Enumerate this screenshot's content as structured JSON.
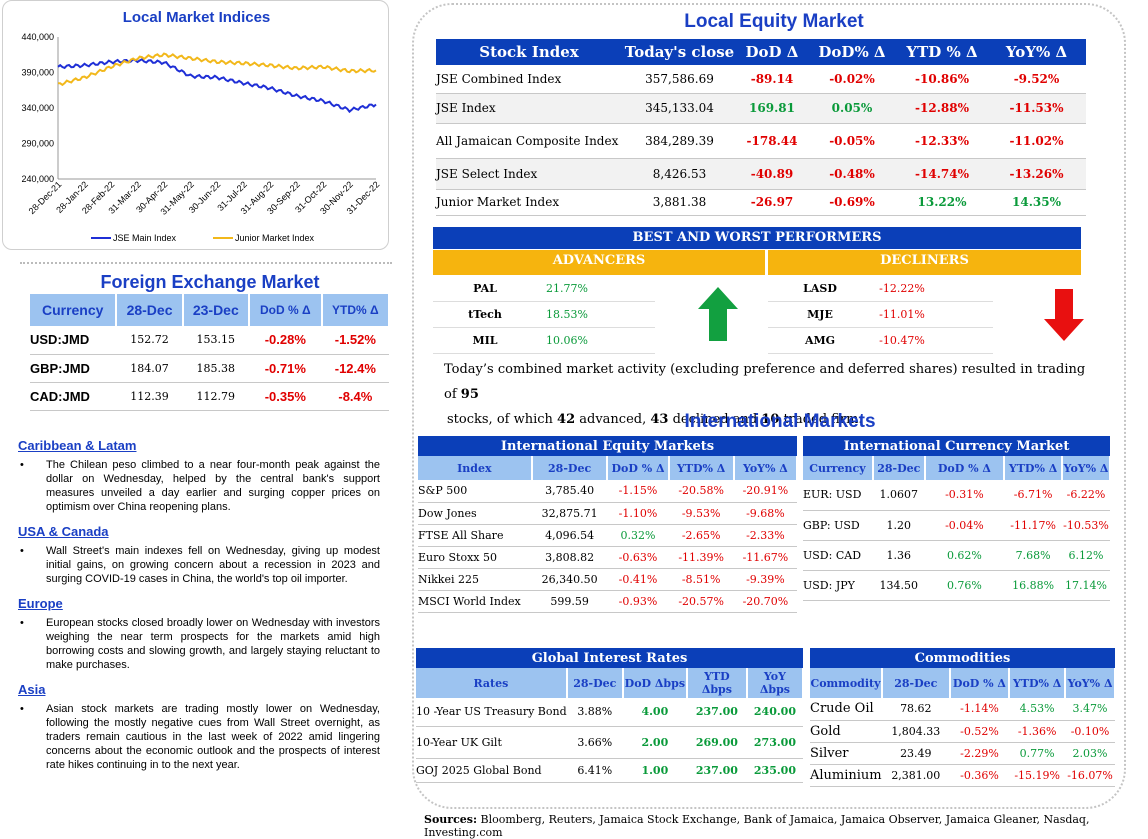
{
  "indices_chart": {
    "title": "Local Market Indices",
    "y_ticks": [
      "440,000",
      "390,000",
      "340,000",
      "290,000",
      "240,000"
    ],
    "x_ticks": [
      "28-Dec-21",
      "28-Jan-22",
      "28-Feb-22",
      "31-Mar-22",
      "30-Apr-22",
      "31-May-22",
      "30-Jun-22",
      "31-Jul-22",
      "31-Aug-22",
      "30-Sep-22",
      "31-Oct-22",
      "30-Nov-22",
      "31-Dec-22"
    ],
    "legend": [
      "JSE Main Index",
      "Junior Market Index"
    ],
    "colors": {
      "jse": "#1f2fd6",
      "junior": "#f2b81b"
    }
  },
  "chart_data": {
    "type": "line",
    "title": "Local Market Indices",
    "x": [
      "28-Dec-21",
      "28-Jan-22",
      "28-Feb-22",
      "31-Mar-22",
      "30-Apr-22",
      "31-May-22",
      "30-Jun-22",
      "31-Jul-22",
      "31-Aug-22",
      "30-Sep-22",
      "31-Oct-22",
      "30-Nov-22",
      "31-Dec-22"
    ],
    "ylim": [
      240000,
      440000
    ],
    "series": [
      {
        "name": "JSE Main Index",
        "values": [
          398000,
          400000,
          405000,
          407000,
          404000,
          385000,
          383000,
          375000,
          368000,
          357000,
          350000,
          337000,
          345000
        ]
      },
      {
        "name": "Junior Market Index",
        "values": [
          373000,
          383000,
          398000,
          410000,
          415000,
          410000,
          405000,
          403000,
          400000,
          396000,
          398000,
          392000,
          393000
        ]
      }
    ]
  },
  "fx": {
    "title": "Foreign Exchange Market",
    "headers": [
      "Currency",
      "28-Dec",
      "23-Dec",
      "DoD % Δ",
      "YTD% Δ"
    ],
    "rows": [
      [
        "USD:JMD",
        "152.72",
        "153.15",
        "-0.28%",
        "-1.52%"
      ],
      [
        "GBP:JMD",
        "184.07",
        "185.38",
        "-0.71%",
        "-12.4%"
      ],
      [
        "CAD:JMD",
        "112.39",
        "112.79",
        "-0.35%",
        "-8.4%"
      ]
    ]
  },
  "news": [
    {
      "heading": "Caribbean & Latam",
      "text": "The Chilean peso climbed to a near four-month peak against the dollar on Wednesday, helped by the central bank's support measures unveiled a day earlier and surging copper prices on optimism over China reopening plans."
    },
    {
      "heading": "USA & Canada",
      "text": "Wall Street's main indexes fell on Wednesday, giving up modest initial gains, on growing concern about a recession in 2023 and surging COVID-19 cases in China, the world's top oil importer."
    },
    {
      "heading": "Europe",
      "text": "European stocks closed broadly lower on Wednesday with investors weighing the near term prospects for the markets amid high borrowing costs and slowing growth, and largely staying reluctant to make purchases."
    },
    {
      "heading": "Asia",
      "text": "Asian stock markets are trading mostly lower on Wednesday, following the mostly negative cues from Wall Street overnight, as traders remain cautious in the last week of 2022 amid lingering concerns about the economic outlook and the prospects of interest rate hikes continuing in to the next year."
    }
  ],
  "equity": {
    "title": "Local Equity Market",
    "headers": [
      "Stock Index",
      "Today's close",
      "DoD  Δ",
      "DoD% Δ",
      "YTD % Δ",
      "YoY% Δ"
    ],
    "rows": [
      [
        "JSE Combined Index",
        "357,586.69",
        "-89.14",
        "-0.02%",
        "-10.86%",
        "-9.52%"
      ],
      [
        "JSE Index",
        "345,133.04",
        "169.81",
        "0.05%",
        "-12.88%",
        "-11.53%"
      ],
      [
        "All Jamaican Composite Index",
        "384,289.39",
        "-178.44",
        "-0.05%",
        "-12.33%",
        "-11.02%"
      ],
      [
        "JSE Select Index",
        "8,426.53",
        "-40.89",
        "-0.48%",
        "-14.74%",
        "-13.26%"
      ],
      [
        "Junior Market Index",
        "3,881.38",
        "-26.97",
        "-0.69%",
        "13.22%",
        "14.35%"
      ]
    ]
  },
  "performers": {
    "title": "BEST AND WORST PERFORMERS",
    "advancers_label": "ADVANCERS",
    "decliners_label": "DECLINERS",
    "advancers": [
      [
        "PAL",
        "21.77%"
      ],
      [
        "tTech",
        "18.53%"
      ],
      [
        "MIL",
        "10.06%"
      ]
    ],
    "decliners": [
      [
        "LASD",
        "-12.22%"
      ],
      [
        "MJE",
        "-11.01%"
      ],
      [
        "AMG",
        "-10.47%"
      ]
    ]
  },
  "activity": {
    "pre": "Today’s combined market activity (excluding preference and deferred shares) resulted in trading of ",
    "traded": "95",
    "mid1": " stocks, of which ",
    "advanced": "42",
    "mid2": " advanced, ",
    "declined": "43",
    "mid3": " declined and ",
    "firm": "10",
    "post": " traded firm."
  },
  "intl": {
    "title": "International Markets",
    "equity": {
      "title": "International Equity Markets",
      "headers": [
        "Index",
        "28-Dec",
        "DoD % Δ",
        "YTD% Δ",
        "YoY% Δ"
      ],
      "rows": [
        [
          "S&P 500",
          "3,785.40",
          "-1.15%",
          "-20.58%",
          "-20.91%"
        ],
        [
          "Dow Jones",
          "32,875.71",
          "-1.10%",
          "-9.53%",
          "-9.68%"
        ],
        [
          "FTSE All Share",
          "4,096.54",
          "0.32%",
          "-2.65%",
          "-2.33%"
        ],
        [
          "Euro Stoxx 50",
          "3,808.82",
          "-0.63%",
          "-11.39%",
          "-11.67%"
        ],
        [
          "Nikkei 225",
          "26,340.50",
          "-0.41%",
          "-8.51%",
          "-9.39%"
        ],
        [
          "MSCI World Index",
          "599.59",
          "-0.93%",
          "-20.57%",
          "-20.70%"
        ]
      ]
    },
    "currency": {
      "title": "International Currency Market",
      "headers": [
        "Currency",
        "28-Dec",
        "DoD % Δ",
        "YTD% Δ",
        "YoY% Δ"
      ],
      "rows": [
        [
          "EUR: USD",
          "1.0607",
          "-0.31%",
          "-6.71%",
          "-6.22%"
        ],
        [
          "GBP: USD",
          "1.20",
          "-0.04%",
          "-11.17%",
          "-10.53%"
        ],
        [
          "USD: CAD",
          "1.36",
          "0.62%",
          "7.68%",
          "6.12%"
        ],
        [
          "USD: JPY",
          "134.50",
          "0.76%",
          "16.88%",
          "17.14%"
        ]
      ]
    },
    "rates": {
      "title": "Global Interest Rates",
      "headers": [
        "Rates",
        "28-Dec",
        "DoD Δbps",
        "YTD Δbps",
        "YoY Δbps"
      ],
      "rows": [
        [
          "10 -Year US Treasury Bond",
          "3.88%",
          "4.00",
          "237.00",
          "240.00"
        ],
        [
          "10-Year UK Gilt",
          "3.66%",
          "2.00",
          "269.00",
          "273.00"
        ],
        [
          "GOJ 2025 Global Bond",
          "6.41%",
          "1.00",
          "237.00",
          "235.00"
        ]
      ]
    },
    "commodities": {
      "title": "Commodities",
      "headers": [
        "Commodity",
        "28-Dec",
        "DoD % Δ",
        "YTD% Δ",
        "YoY% Δ"
      ],
      "rows": [
        [
          "Crude Oil",
          "78.62",
          "-1.14%",
          "4.53%",
          "3.47%"
        ],
        [
          "Gold",
          "1,804.33",
          "-0.52%",
          "-1.36%",
          "-0.10%"
        ],
        [
          "Silver",
          "23.49",
          "-2.29%",
          "0.77%",
          "2.03%"
        ],
        [
          "Aluminium",
          "2,381.00",
          "-0.36%",
          "-15.19%",
          "-16.07%"
        ]
      ]
    }
  },
  "sources": {
    "label": "Sources:",
    "text": " Bloomberg, Reuters, Jamaica Stock Exchange, Bank of Jamaica, Jamaica Observer, Jamaica Gleaner, Nasdaq, Investing.com"
  }
}
